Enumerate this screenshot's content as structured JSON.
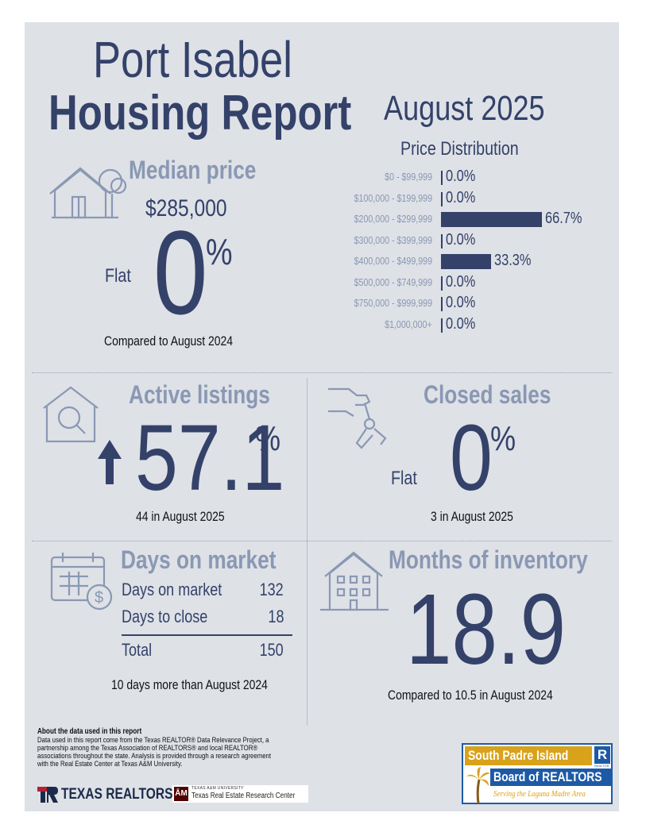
{
  "title": {
    "city": "Port Isabel",
    "report": "Housing Report",
    "period": "August 2025"
  },
  "median_price": {
    "heading": "Median price",
    "value": "$285,000",
    "trend_word": "Flat",
    "change": "0",
    "percent_sign": "%",
    "comparison": "Compared to August 2024"
  },
  "price_distribution": {
    "heading": "Price Distribution",
    "rows": [
      {
        "range": "$0 - $99,999",
        "value": "0.0%",
        "pct": 0.0
      },
      {
        "range": "$100,000 - $199,999",
        "value": "0.0%",
        "pct": 0.0
      },
      {
        "range": "$200,000 - $299,999",
        "value": "66.7%",
        "pct": 66.7
      },
      {
        "range": "$300,000 - $399,999",
        "value": "0.0%",
        "pct": 0.0
      },
      {
        "range": "$400,000 - $499,999",
        "value": "33.3%",
        "pct": 33.3
      },
      {
        "range": "$500,000 - $749,999",
        "value": "0.0%",
        "pct": 0.0
      },
      {
        "range": "$750,000 - $999,999",
        "value": "0.0%",
        "pct": 0.0
      },
      {
        "range": "$1,000,000+",
        "value": "0.0%",
        "pct": 0.0
      }
    ]
  },
  "active_listings": {
    "heading": "Active listings",
    "change": "57.1",
    "percent_sign": "%",
    "direction": "up",
    "detail": "44 in August 2025"
  },
  "closed_sales": {
    "heading": "Closed sales",
    "trend_word": "Flat",
    "change": "0",
    "percent_sign": "%",
    "detail": "3 in August 2025"
  },
  "days_on_market": {
    "heading": "Days on market",
    "rows": [
      {
        "label": "Days on market",
        "value": "132"
      },
      {
        "label": "Days to close",
        "value": "18"
      }
    ],
    "total_label": "Total",
    "total_value": "150",
    "comparison": "10 days more than August 2024"
  },
  "months_inventory": {
    "heading": "Months of inventory",
    "value": "18.9",
    "comparison": "Compared to 10.5 in August 2024"
  },
  "about": {
    "heading": "About the data used in this report",
    "body_lines": [
      "Data used in this report come from the Texas REALTOR® Data Relevance Project, a",
      "partnership among the Texas Association of REALTORS® and local REALTOR®",
      "associations throughout the state. Analysis is provided through a research agreement",
      "with the Real Estate Center at Texas A&M University."
    ]
  },
  "logos": {
    "texas_realtors": "TEXAS REALTORS",
    "tamu_small": "TEXAS A&M UNIVERSITY",
    "tamu_center": "Texas Real Estate Research Center",
    "board_line1": "South Padre Island",
    "board_line2": "Board of REALTORS",
    "board_tagline": "Serving the Laguna Madre Area",
    "realtor_mark": "R",
    "realtor_small": "REALTOR"
  },
  "colors": {
    "navy": "#34426a",
    "light_blue": "#8a98b4",
    "background": "#dee1e6",
    "board_gold": "#d9a21b",
    "board_blue": "#1d5aa6"
  }
}
